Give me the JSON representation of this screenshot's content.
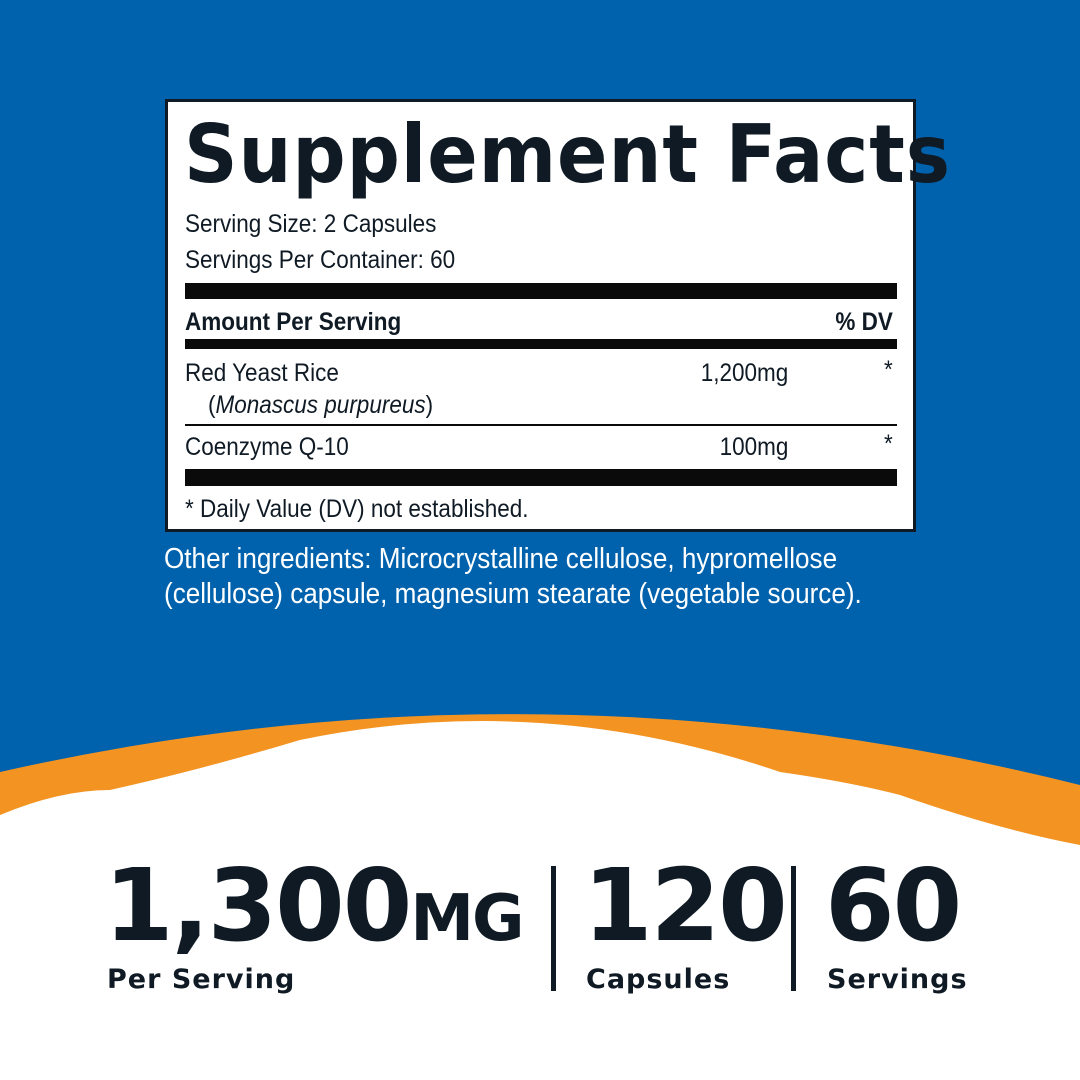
{
  "colors": {
    "blue": "#0062ad",
    "orange": "#f39422",
    "dark": "#0f1a24"
  },
  "label": {
    "title": "Supplement Facts",
    "serving_size": "Serving Size: 2 Capsules",
    "servings_per_container": "Servings Per Container: 60",
    "header_amount": "Amount Per Serving",
    "header_dv": "% DV",
    "rows": [
      {
        "name": "Red Yeast Rice",
        "subname_open": "(",
        "subname": "Monascus purpureus",
        "subname_close": ")",
        "amount": "1,200mg",
        "dv": "*"
      },
      {
        "name": "Coenzyme Q-10",
        "amount": "100mg",
        "dv": "*"
      }
    ],
    "footnote": "* Daily Value (DV) not established."
  },
  "other_ingredients": [
    "Other ingredients: Microcrystalline cellulose, hypromellose",
    "(cellulose) capsule, magnesium stearate (vegetable source)."
  ],
  "stats": [
    {
      "value": "1,300",
      "unit": "MG",
      "label": "Per Serving"
    },
    {
      "value": "120",
      "label": "Capsules"
    },
    {
      "value": "60",
      "label": "Servings"
    }
  ]
}
